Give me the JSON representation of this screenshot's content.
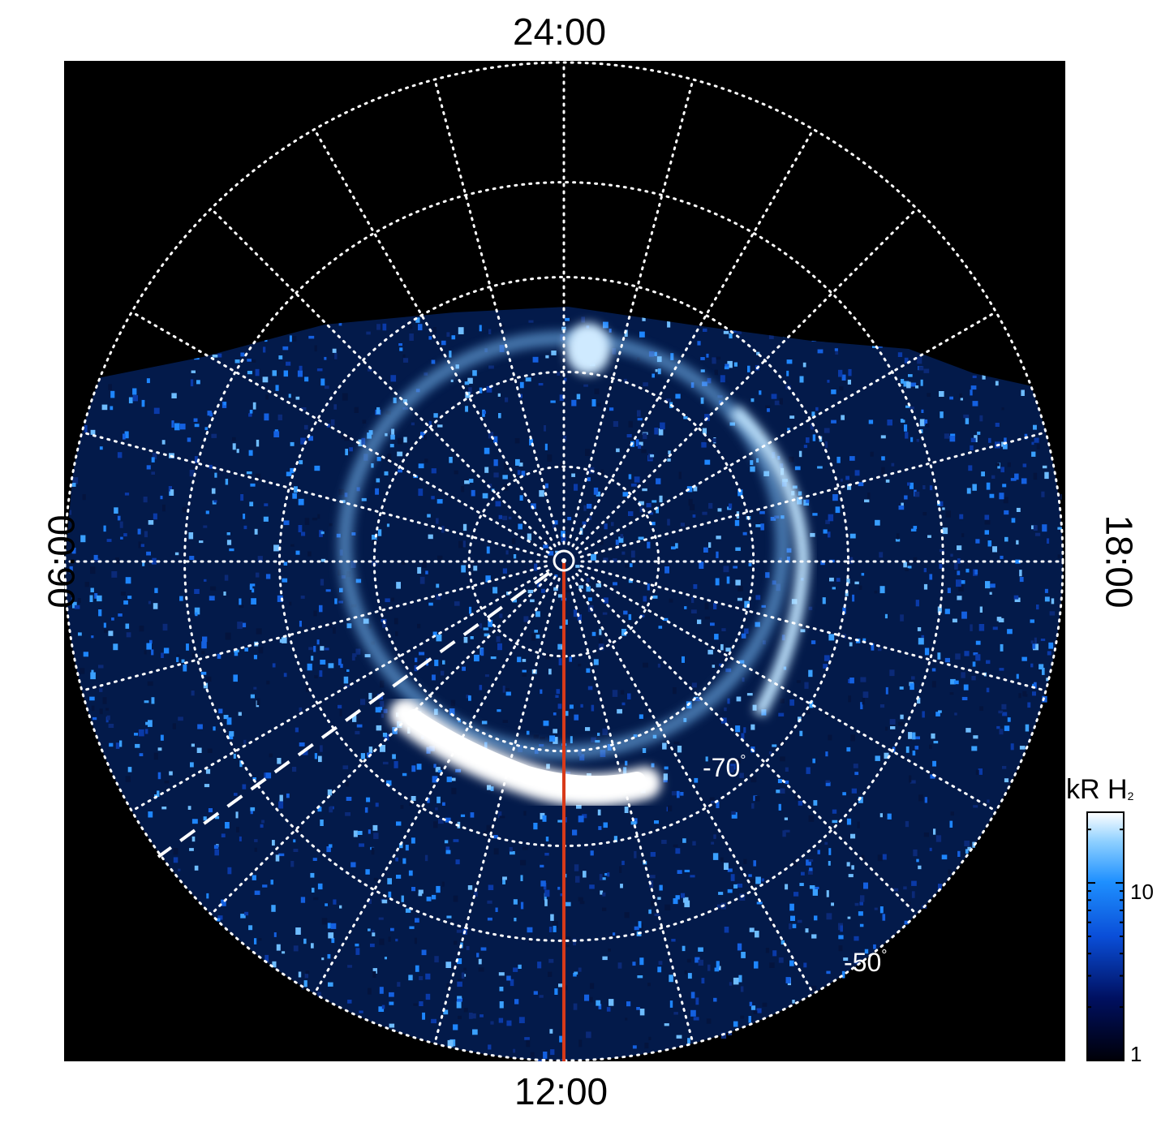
{
  "local_time_labels": {
    "top": "24:00",
    "bottom": "12:00",
    "left": "06:00",
    "right": "18:00"
  },
  "latitude_labels": {
    "inner": "-70",
    "outer": "-50",
    "degree_symbol": "°"
  },
  "colorbar": {
    "title_main": "kR H",
    "title_subscript": "2",
    "scale": "log",
    "range": [
      1,
      25
    ],
    "ticks": [
      "1",
      "10"
    ]
  },
  "colors": {
    "background": "#000000",
    "grid": "#ffffff",
    "emission_low": "#000020",
    "emission_mid": "#1a6cf0",
    "emission_high": "#ffffff",
    "meridian_line": "#d83a1a",
    "dashed_line": "#ffffff"
  }
}
